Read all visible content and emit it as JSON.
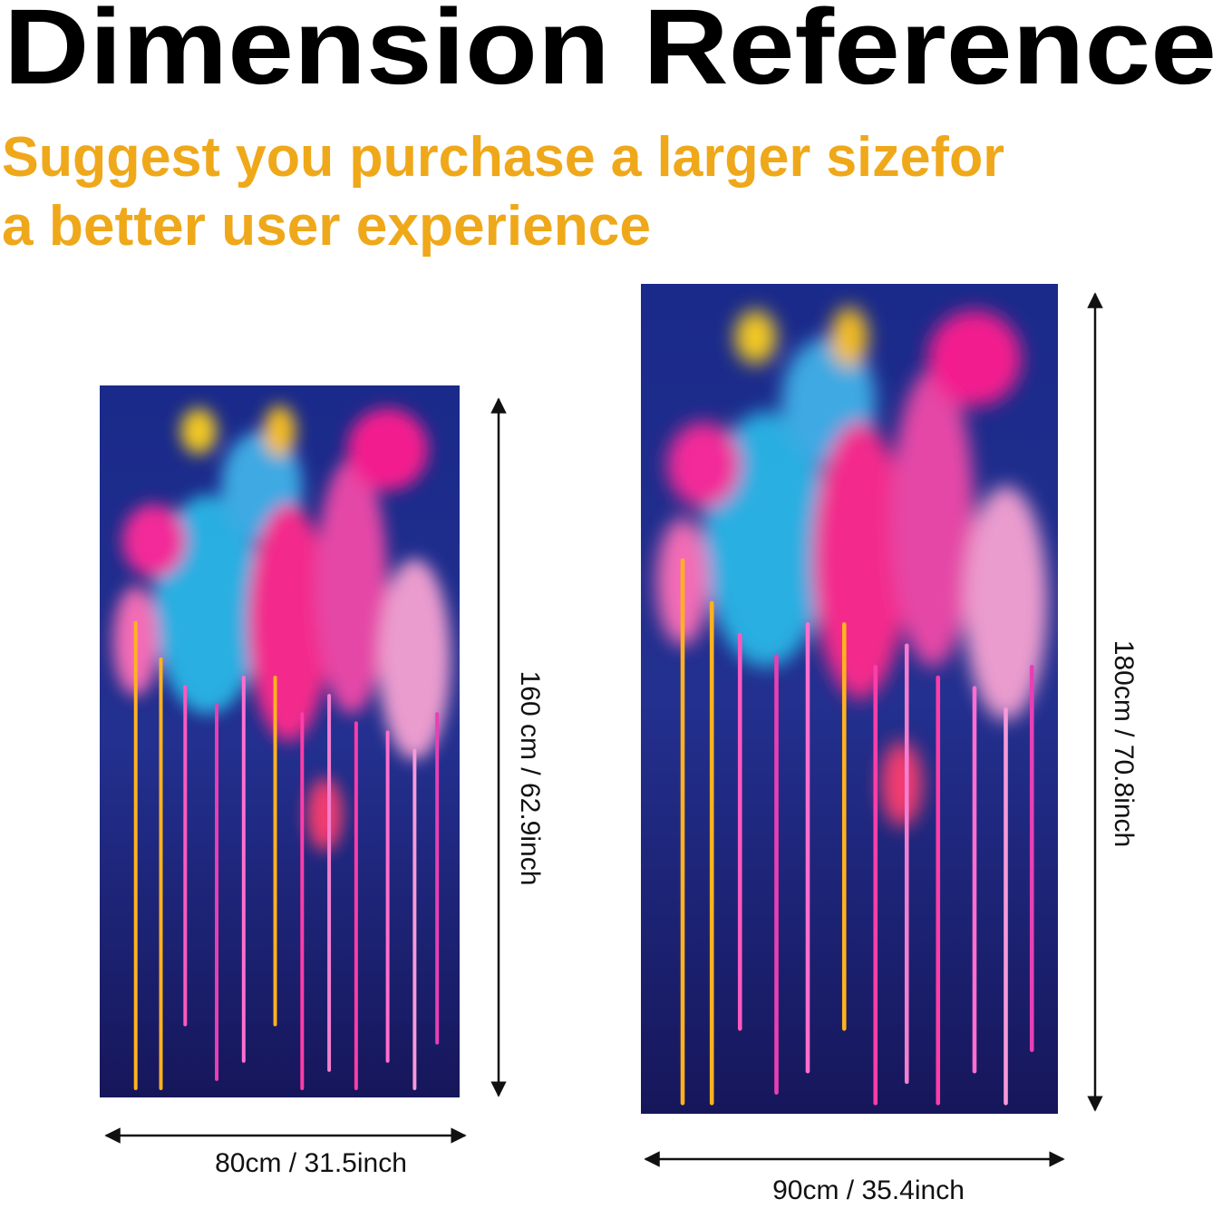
{
  "header": {
    "title": "Dimension Reference",
    "subtitle_lines": [
      "Suggest you purchase a larger sizefor",
      "a better user experience"
    ]
  },
  "products": [
    {
      "width_label": "80cm / 31.5inch",
      "height_label": "160 cm / 62.9inch"
    },
    {
      "width_label": "90cm / 35.4inch",
      "height_label": "180cm / 70.8inch"
    }
  ]
}
